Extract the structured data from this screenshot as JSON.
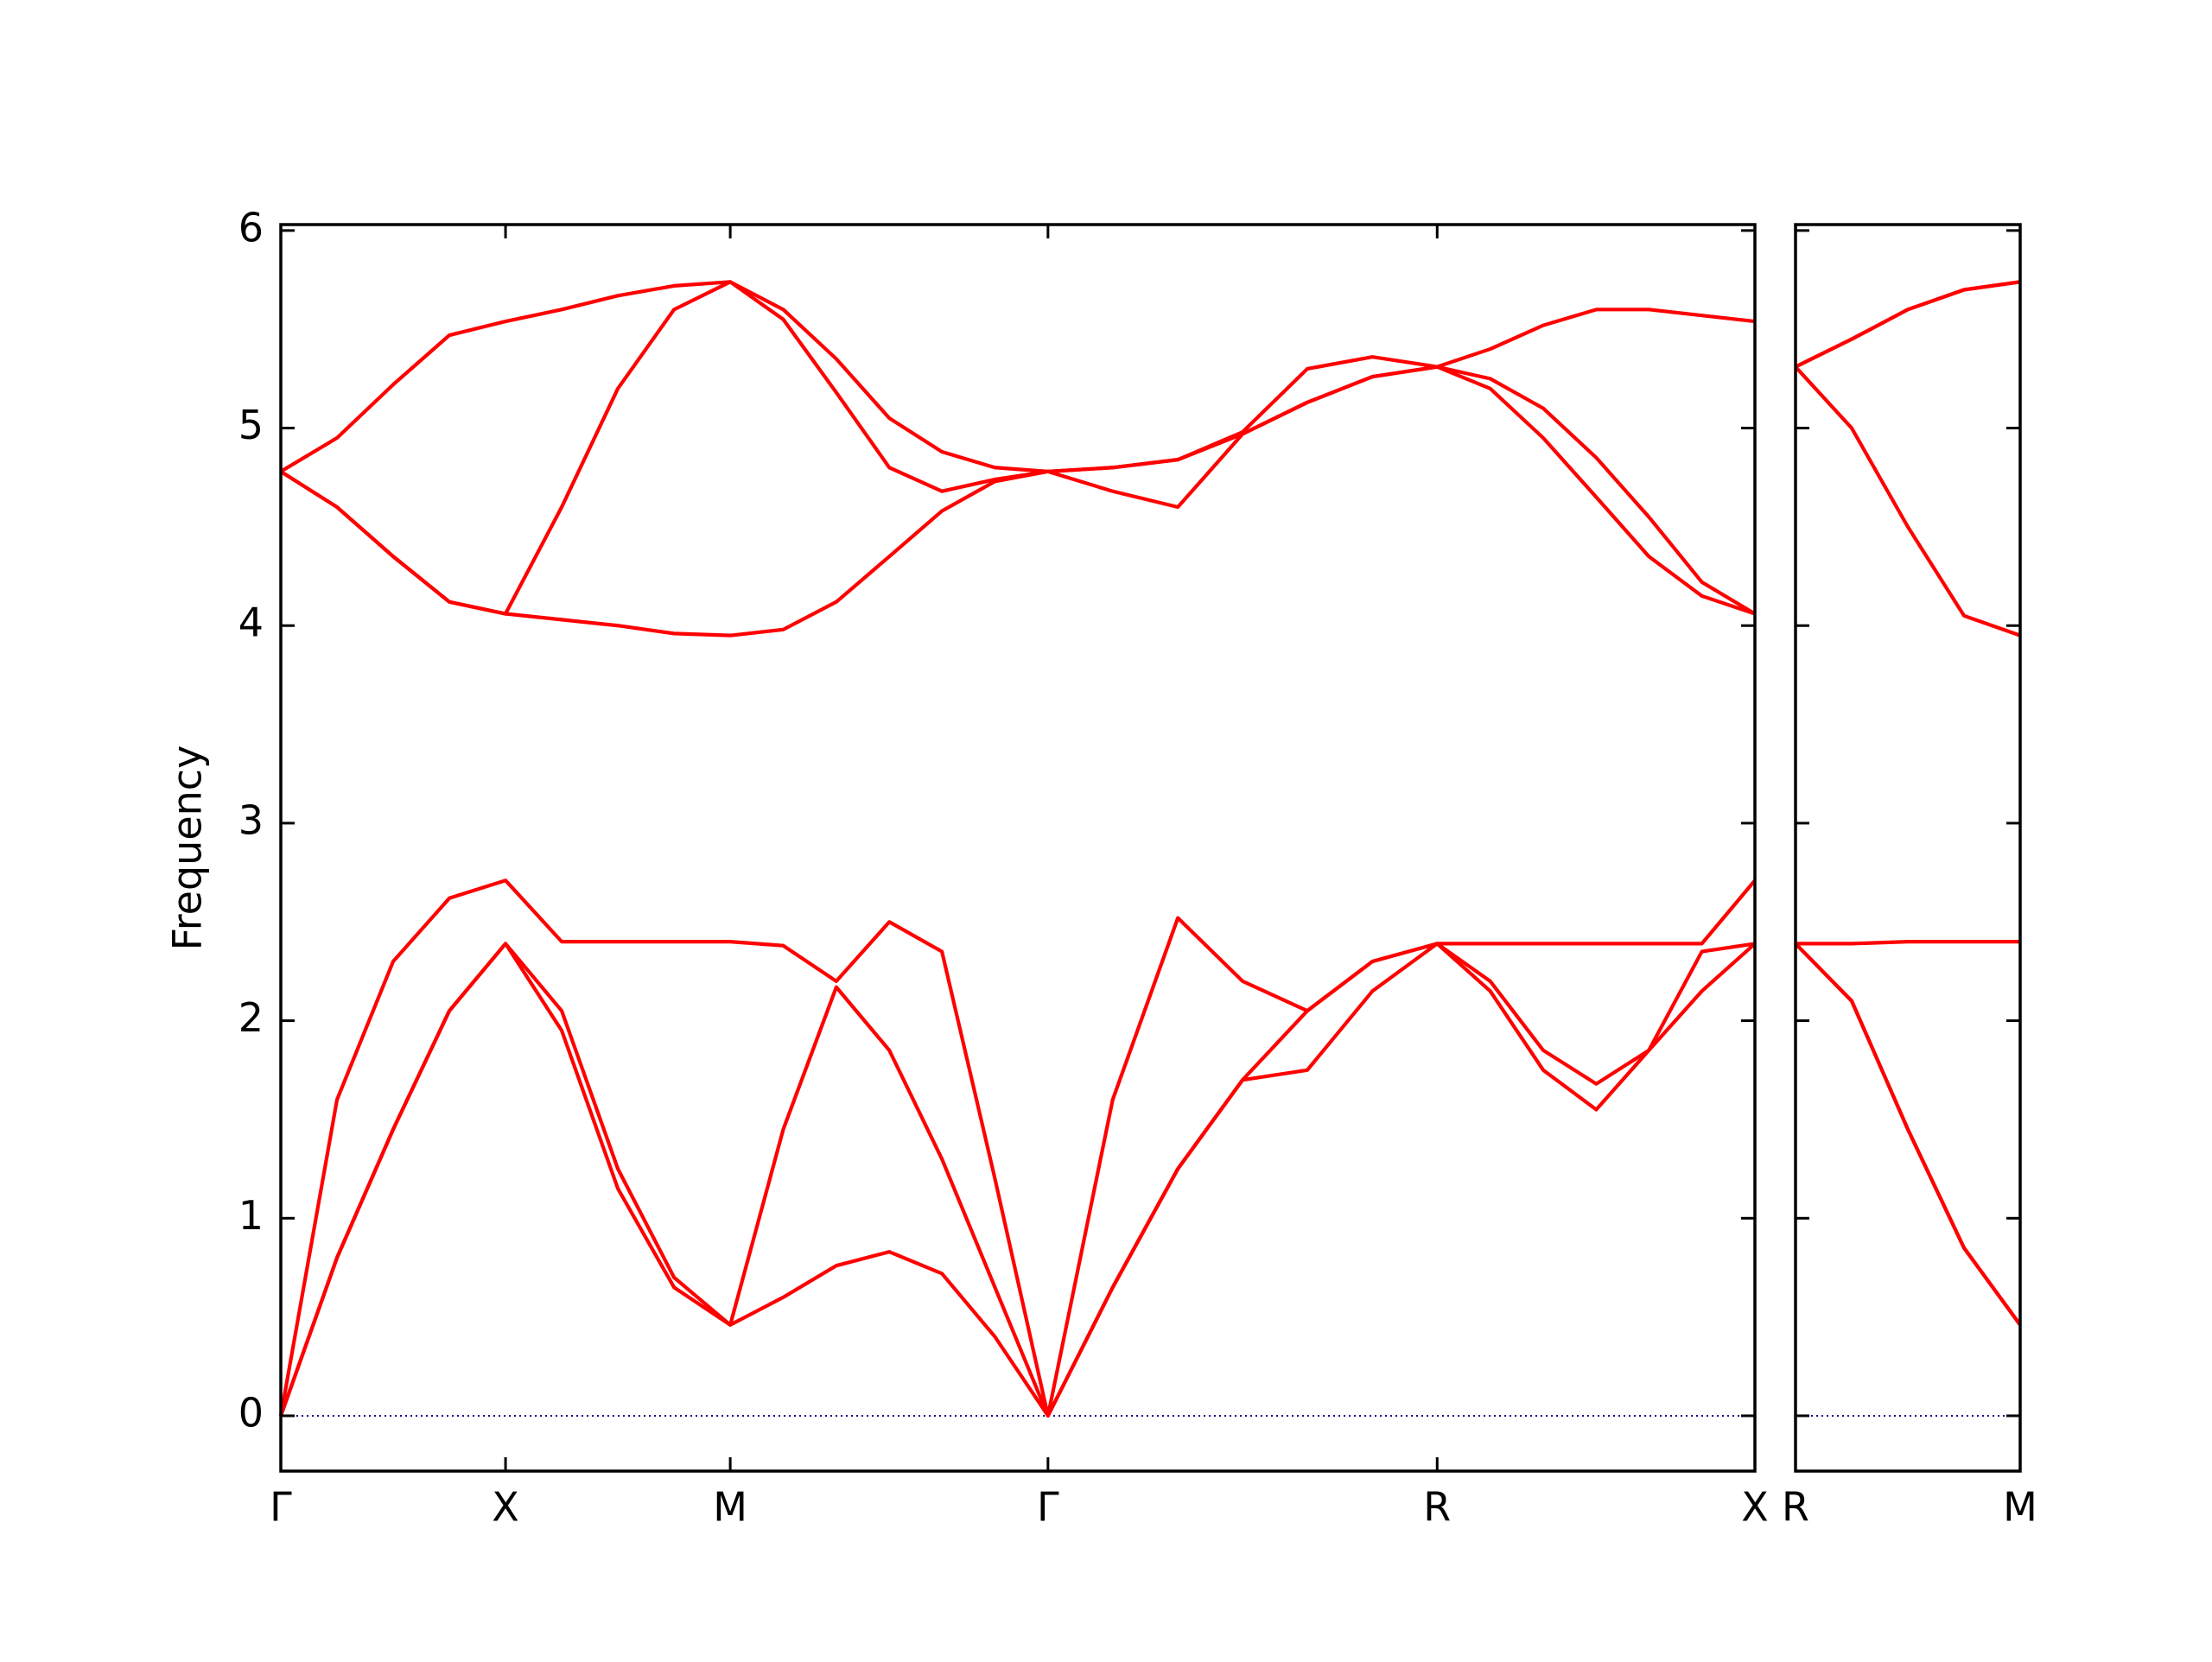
{
  "chart_data": [
    {
      "type": "line",
      "y_label": "Frequency",
      "xlim": [
        0,
        3.28
      ],
      "ylim": [
        -0.28,
        6.03
      ],
      "xticks": [
        {
          "value": 0,
          "label": "Γ"
        },
        {
          "value": 0.5,
          "label": "X"
        },
        {
          "value": 1.0,
          "label": "M"
        },
        {
          "value": 1.707,
          "label": "Γ"
        },
        {
          "value": 2.573,
          "label": "R"
        },
        {
          "value": 3.28,
          "label": "X"
        }
      ],
      "yticks": [
        0,
        1,
        2,
        3,
        4,
        5,
        6
      ],
      "show_ytick_labels": true,
      "hline": 0,
      "hline_color": "#00008b",
      "x": [
        0,
        0.125,
        0.25,
        0.375,
        0.5,
        0.625,
        0.75,
        0.875,
        1.0,
        1.118,
        1.236,
        1.354,
        1.471,
        1.589,
        1.707,
        1.851,
        1.996,
        2.14,
        2.284,
        2.429,
        2.573,
        2.691,
        2.809,
        2.927,
        3.044,
        3.162,
        3.28
      ],
      "series": [
        {
          "color": "#ff0000",
          "values": [
            0,
            0.8,
            1.45,
            2.05,
            2.39,
            1.95,
            1.15,
            0.65,
            0.46,
            0.6,
            0.76,
            0.83,
            0.72,
            0.4,
            0,
            0.65,
            1.25,
            1.7,
            1.75,
            2.15,
            2.39,
            2.15,
            1.75,
            1.55,
            1.85,
            2.15,
            2.39
          ]
        },
        {
          "color": "#ff0000",
          "values": [
            0,
            0.8,
            1.45,
            2.05,
            2.39,
            2.05,
            1.25,
            0.7,
            0.46,
            1.45,
            2.17,
            1.85,
            1.3,
            0.65,
            0,
            0.65,
            1.25,
            1.7,
            2.05,
            2.3,
            2.39,
            2.2,
            1.85,
            1.68,
            1.85,
            2.35,
            2.39
          ]
        },
        {
          "color": "#ff0000",
          "values": [
            0,
            1.6,
            2.3,
            2.62,
            2.71,
            2.4,
            2.4,
            2.4,
            2.4,
            2.38,
            2.2,
            2.5,
            2.35,
            1.2,
            0,
            1.6,
            2.52,
            2.2,
            2.05,
            2.3,
            2.39,
            2.39,
            2.39,
            2.39,
            2.39,
            2.39,
            2.71
          ]
        },
        {
          "color": "#ff0000",
          "values": [
            4.78,
            4.6,
            4.35,
            4.12,
            4.06,
            4.03,
            4.0,
            3.96,
            3.95,
            3.98,
            4.12,
            4.35,
            4.58,
            4.73,
            4.78,
            4.68,
            4.6,
            4.97,
            5.13,
            5.26,
            5.31,
            5.2,
            4.95,
            4.65,
            4.35,
            4.15,
            4.06
          ]
        },
        {
          "color": "#ff0000",
          "values": [
            4.78,
            4.6,
            4.35,
            4.12,
            4.06,
            4.6,
            5.2,
            5.6,
            5.74,
            5.55,
            5.18,
            4.8,
            4.68,
            4.74,
            4.78,
            4.8,
            4.84,
            4.97,
            5.13,
            5.26,
            5.31,
            5.25,
            5.1,
            4.85,
            4.55,
            4.22,
            4.06
          ]
        },
        {
          "color": "#ff0000",
          "values": [
            4.78,
            4.95,
            5.22,
            5.47,
            5.54,
            5.6,
            5.67,
            5.72,
            5.74,
            5.6,
            5.35,
            5.05,
            4.88,
            4.8,
            4.78,
            4.8,
            4.84,
            4.98,
            5.3,
            5.36,
            5.31,
            5.4,
            5.52,
            5.6,
            5.6,
            5.57,
            5.54
          ]
        }
      ]
    },
    {
      "type": "line",
      "xlim": [
        0,
        0.5
      ],
      "ylim": [
        -0.28,
        6.03
      ],
      "xticks": [
        {
          "value": 0,
          "label": "R"
        },
        {
          "value": 0.5,
          "label": "M"
        }
      ],
      "yticks": [
        0,
        1,
        2,
        3,
        4,
        5,
        6
      ],
      "show_ytick_labels": false,
      "hline": 0,
      "hline_color": "#00008b",
      "x": [
        0,
        0.125,
        0.25,
        0.375,
        0.5
      ],
      "series": [
        {
          "color": "#ff0000",
          "values": [
            2.39,
            2.1,
            1.45,
            0.85,
            0.46
          ]
        },
        {
          "color": "#ff0000",
          "values": [
            2.39,
            2.1,
            1.45,
            0.85,
            0.46
          ]
        },
        {
          "color": "#ff0000",
          "values": [
            2.39,
            2.39,
            2.4,
            2.4,
            2.4
          ]
        },
        {
          "color": "#ff0000",
          "values": [
            5.31,
            5.0,
            4.5,
            4.05,
            3.95
          ]
        },
        {
          "color": "#ff0000",
          "values": [
            5.31,
            5.45,
            5.6,
            5.7,
            5.74
          ]
        },
        {
          "color": "#ff0000",
          "values": [
            5.31,
            5.45,
            5.6,
            5.7,
            5.74
          ]
        }
      ]
    }
  ]
}
